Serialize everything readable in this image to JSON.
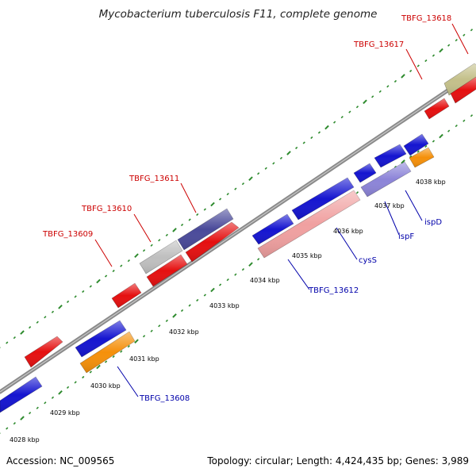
{
  "title": "Mycobacterium tuberculosis F11, complete genome",
  "footer": {
    "accession": "Accession: NC_009565",
    "summary": "Topology: circular; Length: 4,424,435 bp; Genes: 3,989"
  },
  "colors": {
    "backbone": "#8a8a8a",
    "tick": "#2e8b2e",
    "label_red": "#cc0000",
    "label_blue": "#0000aa"
  },
  "scale_labels": [
    "4028 kbp",
    "4029 kbp",
    "4030 kbp",
    "4031 kbp",
    "4032 kbp",
    "4033 kbp",
    "4034 kbp",
    "4035 kbp",
    "4036 kbp",
    "4037 kbp",
    "4038 kbp"
  ],
  "gene_labels": {
    "TBFG_13618": "TBFG_13618",
    "TBFG_13617": "TBFG_13617",
    "TBFG_13611": "TBFG_13611",
    "TBFG_13610": "TBFG_13610",
    "TBFG_13609": "TBFG_13609",
    "TBFG_13612": "TBFG_13612",
    "TBFG_13608": "TBFG_13608",
    "cysS": "cysS",
    "ispF": "ispF",
    "ispD": "ispD"
  },
  "features": [
    {
      "name": "TBFG_13618",
      "color": "#c4c08a"
    },
    {
      "name": "TBFG_13617",
      "color": "#e51010"
    },
    {
      "name": "TBFG_13611",
      "color": "#4a4a9a"
    },
    {
      "name": "TBFG_13610",
      "color": "#bfbfbf"
    },
    {
      "name": "TBFG_13609",
      "color": "#e51010"
    },
    {
      "name": "TBFG_13612",
      "color": "#f0a0a0"
    },
    {
      "name": "TBFG_13608",
      "color": "#f5900a"
    },
    {
      "name": "cysS",
      "color": "#1515d0"
    },
    {
      "name": "ispF",
      "color": "#8c84d8"
    },
    {
      "name": "ispD",
      "color": "#f5900a"
    }
  ]
}
